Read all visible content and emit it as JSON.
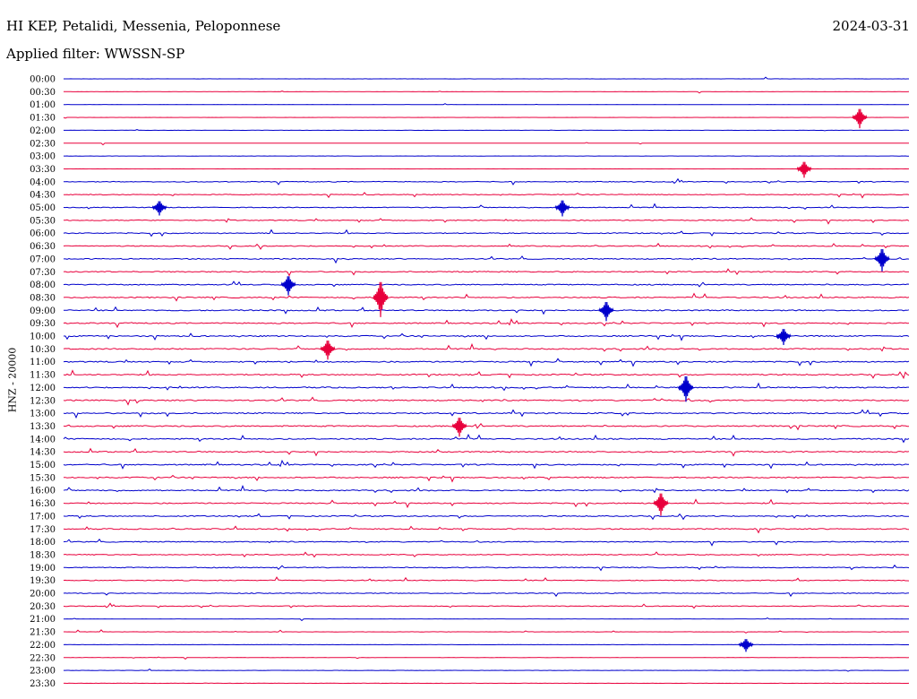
{
  "header": {
    "station": "HI KEP, Petalidi, Messenia, Peloponnese",
    "date": "2024-03-31",
    "filter": "Applied filter: WWSSN-SP"
  },
  "colors": {
    "even_hour": "#0000cc",
    "half_hour": "#e8003c",
    "text": "#000000"
  },
  "chart_data": {
    "type": "helicorder",
    "ylabel": "HNZ - 20000",
    "rows": [
      "00:00",
      "00:30",
      "01:00",
      "01:30",
      "02:00",
      "02:30",
      "03:00",
      "03:30",
      "04:00",
      "04:30",
      "05:00",
      "05:30",
      "06:00",
      "06:30",
      "07:00",
      "07:30",
      "08:00",
      "08:30",
      "09:00",
      "09:30",
      "10:00",
      "10:30",
      "11:00",
      "11:30",
      "12:00",
      "12:30",
      "13:00",
      "13:30",
      "14:00",
      "14:30",
      "15:00",
      "15:30",
      "16:00",
      "16:30",
      "17:00",
      "17:30",
      "18:00",
      "18:30",
      "19:00",
      "19:30",
      "20:00",
      "20:30",
      "21:00",
      "21:30",
      "22:00",
      "22:30",
      "23:00",
      "23:30"
    ],
    "line_color_order": [
      "blue",
      "red"
    ]
  }
}
